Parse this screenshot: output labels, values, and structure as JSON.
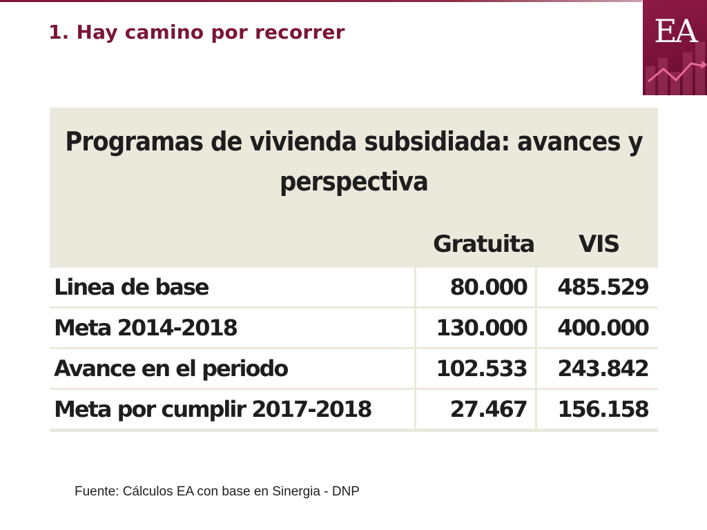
{
  "slide": {
    "title": "1. Hay camino por recorrer"
  },
  "logo": {
    "text": "EA",
    "icon": "rising-trend-line-icon",
    "colors": {
      "background": "#7a1238",
      "text": "#ffffff"
    }
  },
  "table": {
    "title_line1": "Programas de vivienda subsidiada: avances y",
    "title_line2": "perspectiva",
    "columns": [
      "Gratuita",
      "VIS"
    ],
    "rows": [
      {
        "label": "Linea de base",
        "gratuita": "80.000",
        "vis": "485.529"
      },
      {
        "label": "Meta 2014-2018",
        "gratuita": "130.000",
        "vis": "400.000"
      },
      {
        "label": "Avance en el periodo",
        "gratuita": "102.533",
        "vis": "243.842"
      },
      {
        "label": "Meta por cumplir 2017-2018",
        "gratuita": "27.467",
        "vis": "156.158"
      }
    ],
    "colors": {
      "background": "#ebe9dc",
      "cell": "#ffffff"
    }
  },
  "footer": {
    "source": "Fuente: Cálculos EA con base en Sinergia - DNP"
  },
  "theme": {
    "accent": "#7b1535"
  }
}
